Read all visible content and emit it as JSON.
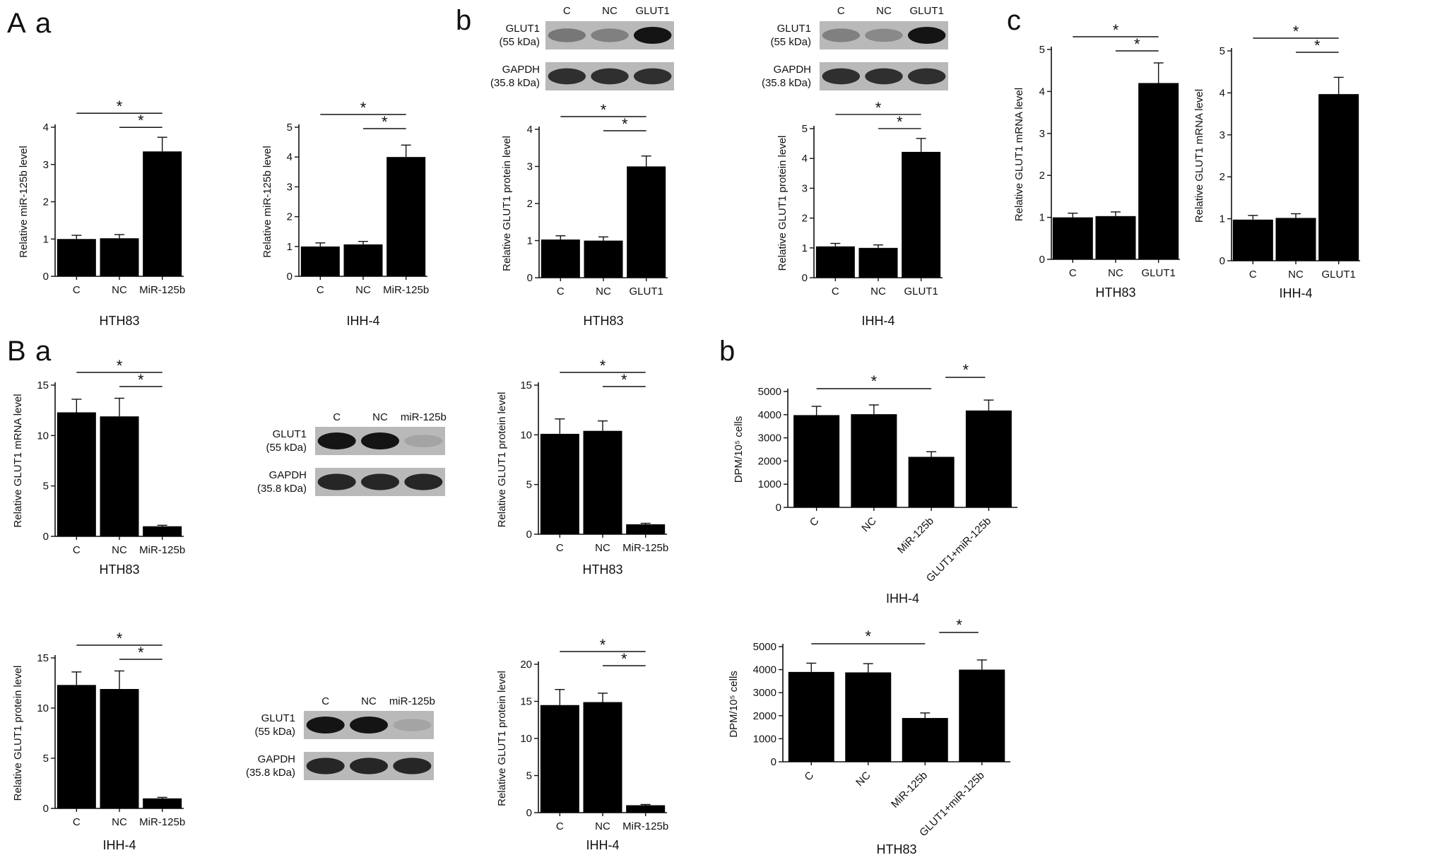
{
  "panel_labels": [
    "A",
    "a",
    "b",
    "c",
    "B",
    "a",
    "b"
  ],
  "blot_rows": [
    "GLUT1\n(55 kDa)",
    "GAPDH\n(35.8 kDa)"
  ],
  "blots": [
    {
      "lanes": [
        "C",
        "NC",
        "GLUT1"
      ],
      "glut1_intensity": [
        0.45,
        0.4,
        1.0
      ],
      "gapdh_intensity": [
        0.85,
        0.85,
        0.85
      ]
    },
    {
      "lanes": [
        "C",
        "NC",
        "GLUT1"
      ],
      "glut1_intensity": [
        0.4,
        0.35,
        1.0
      ],
      "gapdh_intensity": [
        0.85,
        0.85,
        0.85
      ]
    },
    {
      "lanes": [
        "C",
        "NC",
        "miR-125b"
      ],
      "glut1_intensity": [
        1.0,
        1.0,
        0.2
      ],
      "gapdh_intensity": [
        0.9,
        0.9,
        0.9
      ]
    },
    {
      "lanes": [
        "C",
        "NC",
        "miR-125b"
      ],
      "glut1_intensity": [
        1.0,
        1.0,
        0.2
      ],
      "gapdh_intensity": [
        0.9,
        0.9,
        0.9
      ]
    }
  ],
  "chart_data": [
    {
      "id": "Aa-HTH83",
      "type": "bar",
      "categories": [
        "C",
        "NC",
        "MiR-125b"
      ],
      "values": [
        1.0,
        1.02,
        3.35
      ],
      "errors": [
        0.1,
        0.1,
        0.38
      ],
      "ylabel": "Relative miR-125b level",
      "xlabel": "HTH83",
      "ylim": [
        0,
        4
      ],
      "yticks": [
        0,
        1,
        2,
        3,
        4
      ],
      "sig_marks": [
        "*",
        "*"
      ]
    },
    {
      "id": "Aa-IHH4",
      "type": "bar",
      "categories": [
        "C",
        "NC",
        "MiR-125b"
      ],
      "values": [
        1.0,
        1.07,
        4.0
      ],
      "errors": [
        0.12,
        0.1,
        0.4
      ],
      "ylabel": "Relative miR-125b level",
      "xlabel": "IHH-4",
      "ylim": [
        0,
        5
      ],
      "yticks": [
        0,
        1,
        2,
        3,
        4,
        5
      ],
      "sig_marks": [
        "*",
        "*"
      ]
    },
    {
      "id": "Ab-HTH83",
      "type": "bar",
      "categories": [
        "C",
        "NC",
        "GLUT1"
      ],
      "values": [
        1.03,
        1.0,
        3.0
      ],
      "errors": [
        0.1,
        0.1,
        0.28
      ],
      "ylabel": "Relative GLUT1 protein level",
      "xlabel": "HTH83",
      "ylim": [
        0,
        4
      ],
      "yticks": [
        0,
        1,
        2,
        3,
        4
      ],
      "sig_marks": [
        "*",
        "*"
      ]
    },
    {
      "id": "Ab-IHH4",
      "type": "bar",
      "categories": [
        "C",
        "NC",
        "GLUT1"
      ],
      "values": [
        1.05,
        1.0,
        4.22
      ],
      "errors": [
        0.1,
        0.1,
        0.45
      ],
      "ylabel": "Relative GLUT1 protein level",
      "xlabel": "IHH-4",
      "ylim": [
        0,
        5
      ],
      "yticks": [
        0,
        1,
        2,
        3,
        4,
        5
      ],
      "sig_marks": [
        "*",
        "*"
      ]
    },
    {
      "id": "Ac-HTH83",
      "type": "bar",
      "categories": [
        "C",
        "NC",
        "GLUT1"
      ],
      "values": [
        1.0,
        1.03,
        4.2
      ],
      "errors": [
        0.1,
        0.1,
        0.48
      ],
      "ylabel": "Relative GLUT1 mRNA level",
      "xlabel": "HTH83",
      "ylim": [
        0,
        5
      ],
      "yticks": [
        0,
        1,
        2,
        3,
        4,
        5
      ],
      "sig_marks": [
        "*",
        "*"
      ]
    },
    {
      "id": "Ac-IHH4",
      "type": "bar",
      "categories": [
        "C",
        "NC",
        "GLUT1"
      ],
      "values": [
        0.98,
        1.02,
        3.97
      ],
      "errors": [
        0.1,
        0.1,
        0.4
      ],
      "ylabel": "Relative GLUT1 mRNA level",
      "xlabel": "IHH-4",
      "ylim": [
        0,
        5
      ],
      "yticks": [
        0,
        1,
        2,
        3,
        4,
        5
      ],
      "sig_marks": [
        "*",
        "*"
      ]
    },
    {
      "id": "Ba-mRNA-HTH83",
      "type": "bar",
      "categories": [
        "C",
        "NC",
        "MiR-125b"
      ],
      "values": [
        12.3,
        11.9,
        1.0
      ],
      "errors": [
        1.3,
        1.8,
        0.1
      ],
      "ylabel": "Relative GLUT1 mRNA level",
      "xlabel": "HTH83",
      "ylim": [
        0,
        15
      ],
      "yticks": [
        0,
        5,
        10,
        15
      ],
      "sig_marks": [
        "*",
        "*"
      ]
    },
    {
      "id": "Ba-prot-HTH83",
      "type": "bar",
      "categories": [
        "C",
        "NC",
        "MiR-125b"
      ],
      "values": [
        10.1,
        10.4,
        1.0
      ],
      "errors": [
        1.5,
        1.0,
        0.1
      ],
      "ylabel": "Relative GLUT1 protein level",
      "xlabel": "HTH83",
      "ylim": [
        0,
        15
      ],
      "yticks": [
        0,
        5,
        10,
        15
      ],
      "sig_marks": [
        "*",
        "*"
      ]
    },
    {
      "id": "Ba-mRNA-IHH4",
      "type": "bar",
      "categories": [
        "C",
        "NC",
        "MiR-125b"
      ],
      "values": [
        12.3,
        11.9,
        1.0
      ],
      "errors": [
        1.3,
        1.8,
        0.1
      ],
      "ylabel": "Relative GLUT1 protein level",
      "xlabel": "IHH-4",
      "ylim": [
        0,
        15
      ],
      "yticks": [
        0,
        5,
        10,
        15
      ],
      "sig_marks": [
        "*",
        "*"
      ]
    },
    {
      "id": "Ba-prot-IHH4",
      "type": "bar",
      "categories": [
        "C",
        "NC",
        "MiR-125b"
      ],
      "values": [
        14.5,
        14.9,
        1.0
      ],
      "errors": [
        2.1,
        1.2,
        0.1
      ],
      "ylabel": "Relative GLUT1 protein level",
      "xlabel": "IHH-4",
      "ylim": [
        0,
        20
      ],
      "yticks": [
        0,
        5,
        10,
        15,
        20
      ],
      "sig_marks": [
        "*",
        "*"
      ]
    },
    {
      "id": "Bb-IHH4",
      "type": "bar",
      "categories": [
        "C",
        "NC",
        "MiR-125b",
        "GLUT1+miR-125b"
      ],
      "values": [
        3980,
        4020,
        2180,
        4180
      ],
      "errors": [
        380,
        400,
        220,
        450
      ],
      "ylabel": "DPM/10⁵ cells",
      "xlabel": "IHH-4",
      "ylim": [
        0,
        5000
      ],
      "yticks": [
        0,
        1000,
        2000,
        3000,
        4000,
        5000
      ],
      "sig_marks": [
        "*",
        "*"
      ]
    },
    {
      "id": "Bb-HTH83",
      "type": "bar",
      "categories": [
        "C",
        "NC",
        "MiR-125b",
        "GLUT1+miR-125b"
      ],
      "values": [
        3900,
        3880,
        1900,
        4000
      ],
      "errors": [
        380,
        380,
        220,
        420
      ],
      "ylabel": "DPM/10⁵ cells",
      "xlabel": "HTH83",
      "ylim": [
        0,
        5000
      ],
      "yticks": [
        0,
        1000,
        2000,
        3000,
        4000,
        5000
      ],
      "sig_marks": [
        "*",
        "*"
      ]
    }
  ]
}
